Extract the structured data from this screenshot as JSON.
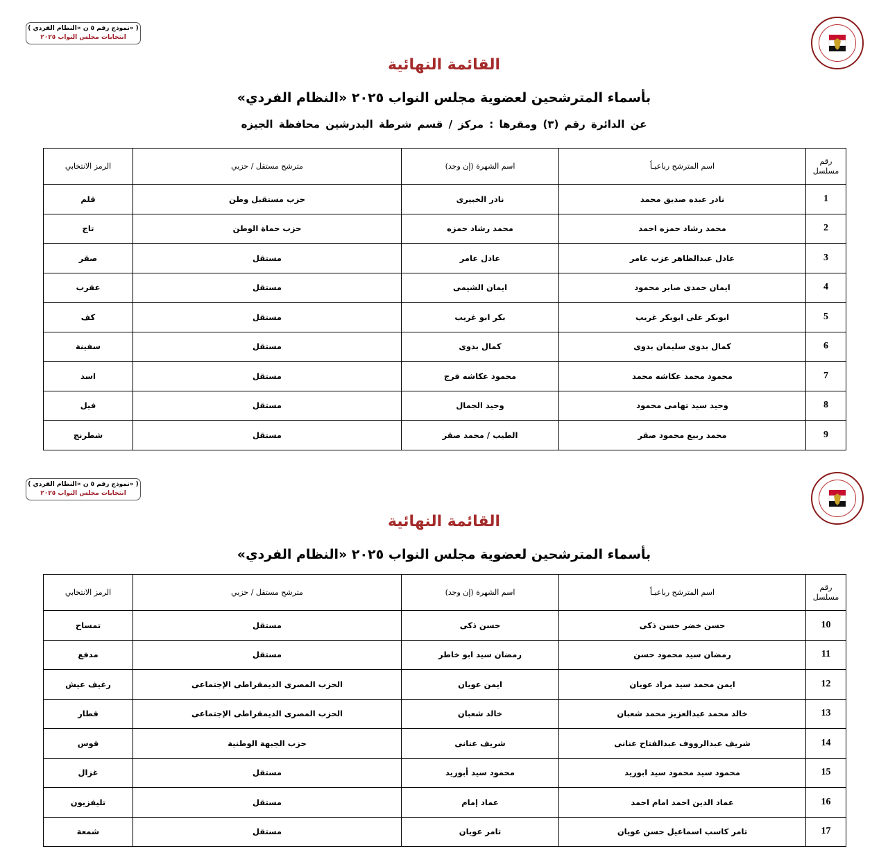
{
  "form_box": {
    "line1": "( نموذج رقم ٥ ن «النظام الفردي» )",
    "line2": "انتخابات مجلس النواب ٢٠٢٥"
  },
  "logo": {
    "icon": "national-election-authority-emblem",
    "text": "National Election Authority Egypt",
    "colors": {
      "ring": "#8a1c1c",
      "title": "#a52a2a"
    }
  },
  "title": "القائمة النهائية",
  "subtitle": "بأسماء المترشحين لعضوية مجلس النواب ٢٠٢٥ «النظام الفردي»",
  "district": "عن الدائرة رقم  (٣)   ومقرها : مركز / قسم شرطة  البدرشين   محافظة  الجيزه",
  "headers": {
    "num": "رقم مسلسل",
    "name": "اسم المترشح رباعيـاً",
    "nickname": "اسم الشهرة (إن وجد)",
    "type": "مترشح مستقل / حزبي",
    "symbol": "الرمز الانتخابي"
  },
  "table1": [
    {
      "num": "1",
      "name": "نادر عبده صديق محمد",
      "nickname": "نادر الخبيرى",
      "type": "حزب مستقبل وطن",
      "symbol": "قلم"
    },
    {
      "num": "2",
      "name": "محمد رشاد حمزه احمد",
      "nickname": "محمد رشاد حمزه",
      "type": "حزب حماة الوطن",
      "symbol": "تاج"
    },
    {
      "num": "3",
      "name": "عادل عبدالظاهر عزب عامر",
      "nickname": "عادل عامر",
      "type": "مستقل",
      "symbol": "صقر"
    },
    {
      "num": "4",
      "name": "ايمان حمدى صابر محمود",
      "nickname": "ايمان الشيمى",
      "type": "مستقل",
      "symbol": "عقرب"
    },
    {
      "num": "5",
      "name": "ابوبكر على ابوبكر غريب",
      "nickname": "بكر ابو غريب",
      "type": "مستقل",
      "symbol": "كف"
    },
    {
      "num": "6",
      "name": "كمال بدوى سليمان بدوى",
      "nickname": "كمال بدوى",
      "type": "مستقل",
      "symbol": "سفينة"
    },
    {
      "num": "7",
      "name": "محمود محمد عكاشه محمد",
      "nickname": "محمود عكاشه فرج",
      "type": "مستقل",
      "symbol": "اسد"
    },
    {
      "num": "8",
      "name": "وحيد سيد تهامى محمود",
      "nickname": "وحيد الجمال",
      "type": "مستقل",
      "symbol": "فيل"
    },
    {
      "num": "9",
      "name": "محمد ربيع محمود صقر",
      "nickname": "الطيب / محمد صقر",
      "type": "مستقل",
      "symbol": "شطرنج"
    }
  ],
  "table2": [
    {
      "num": "10",
      "name": "حسن خضر حسن ذكى",
      "nickname": "حسن ذكى",
      "type": "مستقل",
      "symbol": "تمساح"
    },
    {
      "num": "11",
      "name": "رمضان سيد محمود حسن",
      "nickname": "رمضان سيد ابو خاطر",
      "type": "مستقل",
      "symbol": "مدفع"
    },
    {
      "num": "12",
      "name": "ايمن محمد سيد مراد عويان",
      "nickname": "ايمن عويان",
      "type": "الحزب المصرى الديمقراطى الإجتماعى",
      "symbol": "رغيف عيش"
    },
    {
      "num": "13",
      "name": "خالد محمد عبدالعزيز محمد شعبان",
      "nickname": "خالد شعبان",
      "type": "الحزب المصرى الديمقراطى الإجتماعى",
      "symbol": "قطار"
    },
    {
      "num": "14",
      "name": "شريف عبدالرووف عبدالفتاح عنانى",
      "nickname": "شريف عنانى",
      "type": "حزب الجبهة الوطنية",
      "symbol": "قوس"
    },
    {
      "num": "15",
      "name": "محمود سيد محمود سيد ابوزيد",
      "nickname": "محمود سيد أبوزيد",
      "type": "مستقل",
      "symbol": "غزال"
    },
    {
      "num": "16",
      "name": "عماد الدين احمد امام احمد",
      "nickname": "عماد إمام",
      "type": "مستقل",
      "symbol": "تليفزيون"
    },
    {
      "num": "17",
      "name": "تامر كاسب اسماعيل حسن عويان",
      "nickname": "تامر عويان",
      "type": "مستقل",
      "symbol": "شمعة"
    }
  ]
}
